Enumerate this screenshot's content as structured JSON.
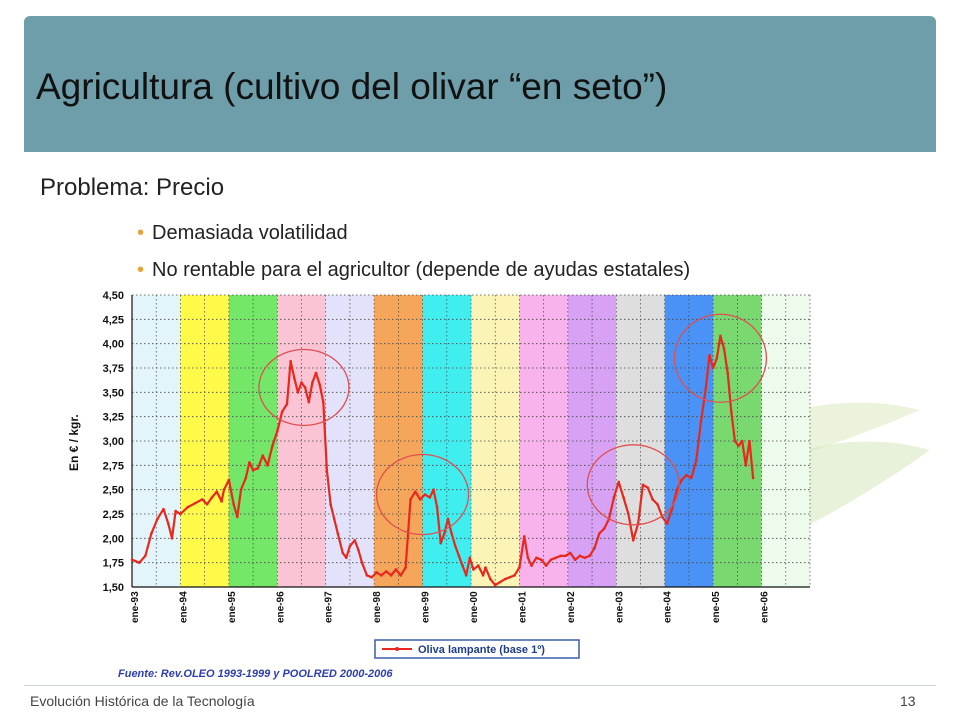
{
  "slide": {
    "title": "Agricultura (cultivo del olivar “en seto”)",
    "subtitle": "Problema: Precio",
    "bullets": [
      "Demasiada volatilidad",
      "No rentable para el agricultor (depende de ayudas estatales)"
    ],
    "bullet_marker": "•",
    "footer_left": "Evolución Histórica de la Tecnología",
    "page_number": "13",
    "colors": {
      "title_band": "#6e9eaa",
      "bullet": "#e8a23a",
      "series": "#e8281c",
      "highlight_circle": "#e05050"
    }
  },
  "chart_data": {
    "type": "line",
    "ylabel": "En € / kgr.",
    "ylim": [
      1.5,
      4.5
    ],
    "yticks": [
      "1,50",
      "1,75",
      "2,00",
      "2,25",
      "2,50",
      "2,75",
      "3,00",
      "3,25",
      "3,50",
      "3,75",
      "4,00",
      "4,25",
      "4,50"
    ],
    "xticks": [
      "ene-93",
      "ene-94",
      "ene-95",
      "ene-96",
      "ene-97",
      "ene-98",
      "ene-99",
      "ene-00",
      "ene-01",
      "ene-02",
      "ene-03",
      "ene-04",
      "ene-05",
      "ene-06"
    ],
    "legend": "Oliva lampante (base 1º)",
    "source": "Fuente: Rev.OLEO 1993-1999 y POOLRED 2000-2006",
    "grid": true,
    "band_colors": [
      "#e3f5fb",
      "#fff94a",
      "#74e668",
      "#fac4d4",
      "#e2e2fb",
      "#f5a65a",
      "#40eef0",
      "#fbf4b6",
      "#f8b2ec",
      "#d8a2f4",
      "#dedede",
      "#4a92f6",
      "#7ad870",
      "#ecfbec"
    ],
    "series": [
      {
        "values": [
          [
            0,
            1.78
          ],
          [
            0.3,
            1.75
          ],
          [
            0.55,
            1.82
          ],
          [
            0.8,
            2.05
          ],
          [
            1.05,
            2.2
          ],
          [
            1.3,
            2.3
          ],
          [
            1.5,
            2.15
          ],
          [
            1.65,
            2.0
          ],
          [
            1.8,
            2.28
          ],
          [
            2.0,
            2.25
          ],
          [
            2.3,
            2.32
          ],
          [
            2.6,
            2.36
          ],
          [
            2.9,
            2.4
          ],
          [
            3.1,
            2.35
          ],
          [
            3.3,
            2.42
          ],
          [
            3.5,
            2.48
          ],
          [
            3.7,
            2.38
          ],
          [
            3.8,
            2.5
          ],
          [
            4.0,
            2.6
          ],
          [
            4.2,
            2.35
          ],
          [
            4.35,
            2.22
          ],
          [
            4.5,
            2.5
          ],
          [
            4.7,
            2.62
          ],
          [
            4.85,
            2.78
          ],
          [
            5.0,
            2.7
          ],
          [
            5.2,
            2.72
          ],
          [
            5.4,
            2.85
          ],
          [
            5.6,
            2.75
          ],
          [
            5.8,
            2.95
          ],
          [
            6.0,
            3.1
          ],
          [
            6.2,
            3.3
          ],
          [
            6.4,
            3.38
          ],
          [
            6.55,
            3.82
          ],
          [
            6.7,
            3.65
          ],
          [
            6.85,
            3.5
          ],
          [
            7.0,
            3.6
          ],
          [
            7.15,
            3.55
          ],
          [
            7.3,
            3.4
          ],
          [
            7.45,
            3.6
          ],
          [
            7.6,
            3.7
          ],
          [
            7.75,
            3.58
          ],
          [
            7.9,
            3.4
          ],
          [
            8.05,
            2.7
          ],
          [
            8.2,
            2.35
          ],
          [
            8.35,
            2.2
          ],
          [
            8.5,
            2.05
          ],
          [
            8.7,
            1.85
          ],
          [
            8.85,
            1.8
          ],
          [
            9.0,
            1.92
          ],
          [
            9.2,
            1.98
          ],
          [
            9.35,
            1.88
          ],
          [
            9.5,
            1.75
          ],
          [
            9.7,
            1.62
          ],
          [
            9.9,
            1.6
          ],
          [
            10.1,
            1.65
          ],
          [
            10.3,
            1.62
          ],
          [
            10.5,
            1.66
          ],
          [
            10.7,
            1.62
          ],
          [
            10.9,
            1.68
          ],
          [
            11.1,
            1.62
          ],
          [
            11.3,
            1.7
          ],
          [
            11.5,
            2.4
          ],
          [
            11.7,
            2.48
          ],
          [
            11.9,
            2.4
          ],
          [
            12.1,
            2.45
          ],
          [
            12.3,
            2.42
          ],
          [
            12.45,
            2.5
          ],
          [
            12.6,
            2.32
          ],
          [
            12.75,
            1.95
          ],
          [
            12.9,
            2.05
          ],
          [
            13.05,
            2.2
          ],
          [
            13.2,
            2.05
          ],
          [
            13.35,
            1.92
          ],
          [
            13.5,
            1.82
          ],
          [
            13.65,
            1.72
          ],
          [
            13.8,
            1.62
          ],
          [
            13.95,
            1.8
          ],
          [
            14.1,
            1.68
          ],
          [
            14.3,
            1.72
          ],
          [
            14.5,
            1.62
          ],
          [
            14.6,
            1.7
          ],
          [
            14.8,
            1.58
          ],
          [
            15.0,
            1.52
          ],
          [
            15.2,
            1.55
          ],
          [
            15.4,
            1.58
          ],
          [
            15.6,
            1.6
          ],
          [
            15.8,
            1.62
          ],
          [
            16.0,
            1.7
          ],
          [
            16.2,
            2.02
          ],
          [
            16.35,
            1.8
          ],
          [
            16.5,
            1.72
          ],
          [
            16.7,
            1.8
          ],
          [
            16.9,
            1.78
          ],
          [
            17.1,
            1.72
          ],
          [
            17.3,
            1.78
          ],
          [
            17.5,
            1.8
          ],
          [
            17.7,
            1.82
          ],
          [
            17.9,
            1.82
          ],
          [
            18.1,
            1.85
          ],
          [
            18.3,
            1.78
          ],
          [
            18.5,
            1.82
          ],
          [
            18.7,
            1.8
          ],
          [
            18.9,
            1.82
          ],
          [
            19.1,
            1.9
          ],
          [
            19.3,
            2.05
          ],
          [
            19.5,
            2.1
          ],
          [
            19.7,
            2.2
          ],
          [
            19.9,
            2.42
          ],
          [
            20.1,
            2.58
          ],
          [
            20.3,
            2.42
          ],
          [
            20.5,
            2.25
          ],
          [
            20.7,
            1.98
          ],
          [
            20.9,
            2.15
          ],
          [
            21.1,
            2.55
          ],
          [
            21.3,
            2.52
          ],
          [
            21.5,
            2.4
          ],
          [
            21.7,
            2.35
          ],
          [
            21.9,
            2.22
          ],
          [
            22.1,
            2.15
          ],
          [
            22.3,
            2.3
          ],
          [
            22.5,
            2.5
          ],
          [
            22.7,
            2.6
          ],
          [
            22.9,
            2.65
          ],
          [
            23.1,
            2.62
          ],
          [
            23.3,
            2.8
          ],
          [
            23.5,
            3.2
          ],
          [
            23.7,
            3.55
          ],
          [
            23.85,
            3.88
          ],
          [
            24.0,
            3.75
          ],
          [
            24.15,
            3.85
          ],
          [
            24.3,
            4.08
          ],
          [
            24.45,
            3.95
          ],
          [
            24.6,
            3.7
          ],
          [
            24.75,
            3.3
          ],
          [
            24.9,
            3.0
          ],
          [
            25.05,
            2.95
          ],
          [
            25.2,
            3.0
          ],
          [
            25.35,
            2.75
          ],
          [
            25.5,
            3.0
          ],
          [
            25.65,
            2.62
          ]
        ]
      }
    ]
  }
}
